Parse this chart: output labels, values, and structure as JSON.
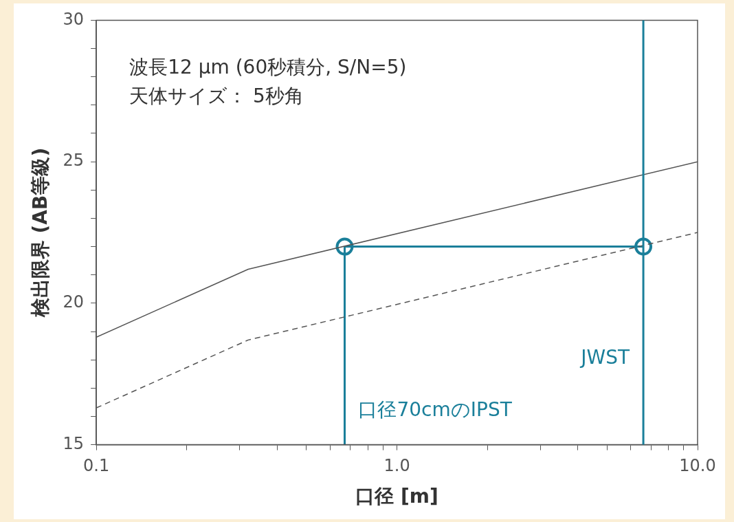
{
  "chart_data": {
    "type": "line",
    "log": "x",
    "xlabel": "口径 [m]",
    "ylabel": "検出限界 (AB等級)",
    "xlim": [
      0.1,
      10
    ],
    "ylim": [
      15,
      30
    ],
    "xticks": [
      {
        "value": 0.1,
        "label": "0.1"
      },
      {
        "value": 0.2,
        "label": null
      },
      {
        "value": 0.3,
        "label": null
      },
      {
        "value": 0.4,
        "label": null
      },
      {
        "value": 0.5,
        "label": null
      },
      {
        "value": 0.6,
        "label": null
      },
      {
        "value": 0.7,
        "label": null
      },
      {
        "value": 0.8,
        "label": null
      },
      {
        "value": 0.9,
        "label": null
      },
      {
        "value": 1,
        "label": "1.0"
      },
      {
        "value": 2,
        "label": null
      },
      {
        "value": 3,
        "label": null
      },
      {
        "value": 4,
        "label": null
      },
      {
        "value": 5,
        "label": null
      },
      {
        "value": 6,
        "label": null
      },
      {
        "value": 7,
        "label": null
      },
      {
        "value": 8,
        "label": null
      },
      {
        "value": 9,
        "label": null
      },
      {
        "value": 10,
        "label": "10.0"
      }
    ],
    "yticks": [
      15,
      {
        "value": 16,
        "label": null
      },
      {
        "value": 17,
        "label": null
      },
      {
        "value": 18,
        "label": null
      },
      {
        "value": 19,
        "label": null
      },
      20,
      {
        "value": 21,
        "label": null
      },
      {
        "value": 22,
        "label": null
      },
      {
        "value": 23,
        "label": null
      },
      {
        "value": 24,
        "label": null
      },
      25,
      {
        "value": 26,
        "label": null
      },
      {
        "value": 27,
        "label": null
      },
      {
        "value": 28,
        "label": null
      },
      {
        "value": 29,
        "label": null
      },
      30
    ],
    "legend": false,
    "grid": false,
    "series": [
      {
        "type": "line",
        "color": "#555555",
        "line_style": "solid",
        "marker": "none",
        "x": [
          0.1,
          0.32,
          10
        ],
        "values": [
          18.8,
          21.2,
          25.0
        ]
      },
      {
        "type": "line",
        "color": "#555555",
        "line_style": "dashed",
        "marker": "none",
        "x": [
          0.1,
          0.32,
          10
        ],
        "values": [
          16.3,
          18.7,
          22.5
        ]
      },
      {
        "type": "line",
        "color": "#1a7f9a",
        "line_style": "solid",
        "marker": "none",
        "x": [
          0.67,
          6.6
        ],
        "values": [
          22,
          22
        ]
      },
      {
        "type": "line",
        "color": "#1a7f9a",
        "line_style": "solid",
        "marker": "none",
        "x": [
          0.67,
          0.67
        ],
        "values": [
          15,
          22
        ]
      },
      {
        "type": "scatter",
        "color": "#1a7f9a",
        "marker": "circle",
        "x": [
          0.67,
          6.6
        ],
        "values": [
          22,
          22
        ]
      }
    ],
    "ref_lines": [
      {
        "axis": "x",
        "value": 6.6,
        "label": "JWST",
        "color": "#1a7f9a"
      }
    ],
    "annotations": [
      "波長12 µm (60秒積分, S/N=5)",
      "天体サイズ： 5秒角",
      {
        "text": "口径70cmのIPST",
        "x": 0.67,
        "y": 16.2
      }
    ]
  }
}
